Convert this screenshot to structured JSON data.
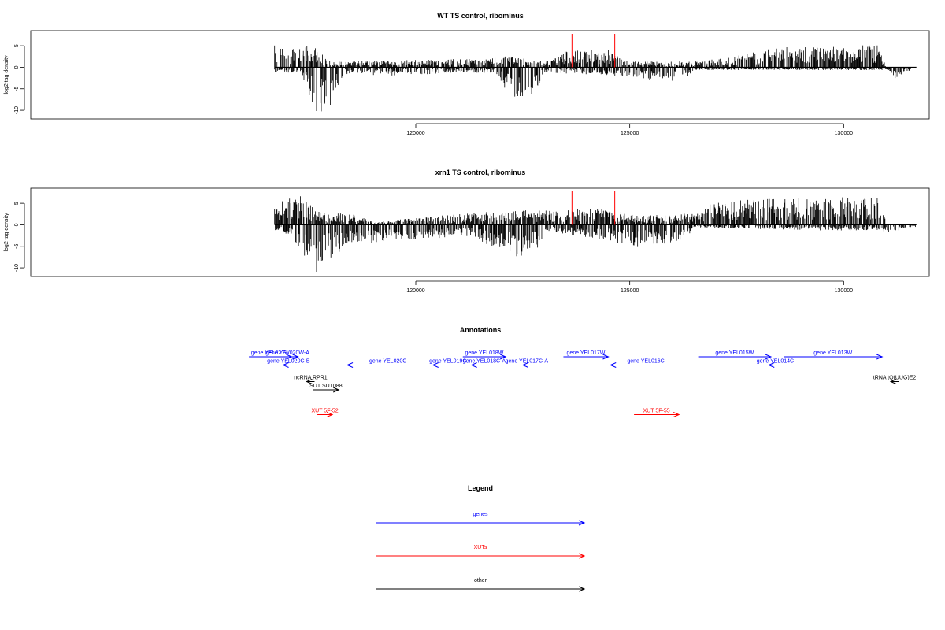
{
  "colors": {
    "genes": "#0000ff",
    "xuts": "#ff0000",
    "other": "#000000",
    "marker": "#ff0000"
  },
  "chart_data": [
    {
      "type": "bar",
      "title": "WT TS control, ribominus",
      "ylabel": "log2 tag density",
      "xlim": [
        111000,
        132000
      ],
      "ylim": [
        -12,
        8.5
      ],
      "yticks": [
        -10,
        -5,
        0,
        5
      ],
      "xticks": [
        120000,
        125000,
        130000
      ],
      "xrange_data": [
        116700,
        131700
      ],
      "markers": [
        123650,
        124650
      ],
      "profile": {
        "plus": [
          [
            116700,
            4
          ],
          [
            117000,
            3
          ],
          [
            117600,
            4
          ],
          [
            118000,
            1
          ],
          [
            121500,
            1.5
          ],
          [
            122100,
            2
          ],
          [
            123000,
            1
          ],
          [
            123600,
            3
          ],
          [
            124500,
            3
          ],
          [
            125000,
            1
          ],
          [
            126600,
            1
          ],
          [
            127500,
            2
          ],
          [
            128500,
            3.5
          ],
          [
            129500,
            3.5
          ],
          [
            130800,
            4
          ],
          [
            131000,
            0
          ]
        ],
        "minus": [
          [
            116700,
            -1
          ],
          [
            117300,
            -1
          ],
          [
            117700,
            -9
          ],
          [
            118000,
            -7
          ],
          [
            118300,
            -1.5
          ],
          [
            119500,
            -1.5
          ],
          [
            121000,
            -1
          ],
          [
            121800,
            -1
          ],
          [
            122300,
            -6
          ],
          [
            122800,
            -5
          ],
          [
            123000,
            -1
          ],
          [
            124700,
            -1.5
          ],
          [
            126200,
            -3
          ],
          [
            126500,
            -0.5
          ],
          [
            129000,
            -0.5
          ],
          [
            131000,
            -0.5
          ],
          [
            131200,
            -2
          ],
          [
            131700,
            0
          ]
        ]
      }
    },
    {
      "type": "bar",
      "title": "xrn1 TS control, ribominus",
      "ylabel": "log2 tag density",
      "xlim": [
        111000,
        132000
      ],
      "ylim": [
        -12,
        8.5
      ],
      "yticks": [
        -10,
        -5,
        0,
        5
      ],
      "xticks": [
        120000,
        125000,
        130000
      ],
      "xrange_data": [
        116700,
        131700
      ],
      "markers": [
        123650,
        124650
      ],
      "profile": {
        "plus": [
          [
            116700,
            4
          ],
          [
            117300,
            5
          ],
          [
            117800,
            2
          ],
          [
            118500,
            2
          ],
          [
            119000,
            0.5
          ],
          [
            121200,
            2
          ],
          [
            122000,
            2.5
          ],
          [
            123500,
            2.5
          ],
          [
            124400,
            3
          ],
          [
            125200,
            1.5
          ],
          [
            126500,
            2
          ],
          [
            127000,
            4
          ],
          [
            128000,
            4.5
          ],
          [
            128600,
            4.5
          ],
          [
            129500,
            5
          ],
          [
            130900,
            5
          ],
          [
            131000,
            0
          ]
        ],
        "minus": [
          [
            116700,
            -1
          ],
          [
            117100,
            -2
          ],
          [
            117700,
            -9
          ],
          [
            118000,
            -6
          ],
          [
            118500,
            -3.5
          ],
          [
            121300,
            -2
          ],
          [
            122300,
            -6
          ],
          [
            122900,
            -5
          ],
          [
            123000,
            -1
          ],
          [
            124500,
            -3
          ],
          [
            125200,
            -4
          ],
          [
            126300,
            -3
          ],
          [
            126500,
            -0.5
          ],
          [
            129500,
            -1
          ],
          [
            130900,
            -1
          ],
          [
            131000,
            -1.5
          ],
          [
            131700,
            -0.5
          ]
        ]
      }
    }
  ],
  "annotations": {
    "title": "Annotations",
    "items": [
      {
        "label": "gene YEL021W",
        "start": 116100,
        "end": 117100,
        "dir": "right",
        "row": 0,
        "color": "genes"
      },
      {
        "label": "gene YEL020W-A",
        "start": 116750,
        "end": 117250,
        "dir": "right",
        "row": 0,
        "color": "genes"
      },
      {
        "label": "gene YEL020C-B",
        "start": 116900,
        "end": 117150,
        "dir": "left",
        "row": 1,
        "color": "genes"
      },
      {
        "label": "gene YEL020C",
        "start": 118400,
        "end": 120300,
        "dir": "left",
        "row": 1,
        "color": "genes"
      },
      {
        "label": "gene YEL019C",
        "start": 120400,
        "end": 121100,
        "dir": "left",
        "row": 1,
        "color": "genes"
      },
      {
        "label": "gene YEL018W",
        "start": 121100,
        "end": 122100,
        "dir": "right",
        "row": 0,
        "color": "genes"
      },
      {
        "label": "gene YEL018C-A",
        "start": 121300,
        "end": 121900,
        "dir": "left",
        "row": 1,
        "color": "genes"
      },
      {
        "label": "gene YEL017C-A",
        "start": 122500,
        "end": 122600,
        "dir": "left",
        "row": 1,
        "color": "genes"
      },
      {
        "label": "gene YEL017W",
        "start": 123450,
        "end": 124500,
        "dir": "right",
        "row": 0,
        "color": "genes"
      },
      {
        "label": "gene YEL016C",
        "start": 124550,
        "end": 126200,
        "dir": "left",
        "row": 1,
        "color": "genes"
      },
      {
        "label": "gene YEL015W",
        "start": 126600,
        "end": 128300,
        "dir": "right",
        "row": 0,
        "color": "genes"
      },
      {
        "label": "gene YEL014C",
        "start": 128250,
        "end": 128550,
        "dir": "left",
        "row": 1,
        "color": "genes"
      },
      {
        "label": "gene YEL013W",
        "start": 128600,
        "end": 130900,
        "dir": "right",
        "row": 0,
        "color": "genes"
      },
      {
        "label": "ncRNA RPR1",
        "start": 117450,
        "end": 117550,
        "dir": "left",
        "row": 3,
        "color": "other"
      },
      {
        "label": "SUT SUT088",
        "start": 117600,
        "end": 118200,
        "dir": "right",
        "row": 4,
        "color": "other"
      },
      {
        "label": "tRNA tQ(UUG)E2",
        "start": 131100,
        "end": 131200,
        "dir": "left",
        "row": 3,
        "color": "other"
      },
      {
        "label": "XUT 5F-52",
        "start": 117700,
        "end": 118050,
        "dir": "right",
        "row": 7,
        "color": "xuts"
      },
      {
        "label": "XUT 5F-55",
        "start": 125100,
        "end": 126150,
        "dir": "right",
        "row": 7,
        "color": "xuts"
      }
    ]
  },
  "legend": {
    "title": "Legend",
    "items": [
      {
        "label": "genes",
        "color": "genes"
      },
      {
        "label": "XUTs",
        "color": "xuts"
      },
      {
        "label": "other",
        "color": "other"
      }
    ]
  }
}
